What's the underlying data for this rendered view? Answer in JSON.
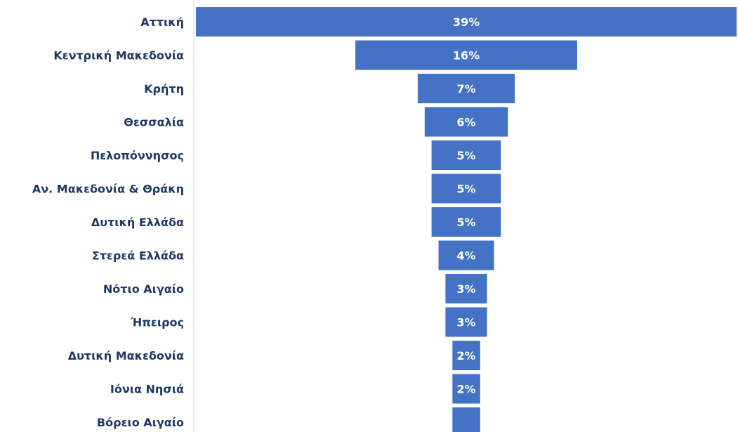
{
  "chart_data": {
    "type": "bar",
    "orientation": "horizontal",
    "style": "funnel (bars centered)",
    "title": "",
    "xlabel": "",
    "ylabel": "",
    "categories": [
      "Αττική",
      "Κεντρική Μακεδονία",
      "Κρήτη",
      "Θεσσαλία",
      "Πελοπόννησος",
      "Αν. Μακεδονία & Θράκη",
      "Δυτική Ελλάδα",
      "Στερεά Ελλάδα",
      "Νότιο Αιγαίο",
      "Ήπειρος",
      "Δυτική Μακεδονία",
      "Ιόνια Νησιά",
      "Βόρειο Αιγαίο"
    ],
    "values": [
      39,
      16,
      7,
      6,
      5,
      5,
      5,
      4,
      3,
      3,
      2,
      2,
      2
    ],
    "data_labels": [
      "39%",
      "16%",
      "7%",
      "6%",
      "5%",
      "5%",
      "5%",
      "4%",
      "3%",
      "3%",
      "2%",
      "2%",
      ""
    ],
    "unit": "%",
    "xlim": [
      0,
      39
    ],
    "grid": false,
    "legend": "none",
    "colors": {
      "bar": "#4472c4",
      "label_text": "#1f3864",
      "data_label_text": "#ffffff",
      "axis_line": "#d9d9d9"
    }
  }
}
